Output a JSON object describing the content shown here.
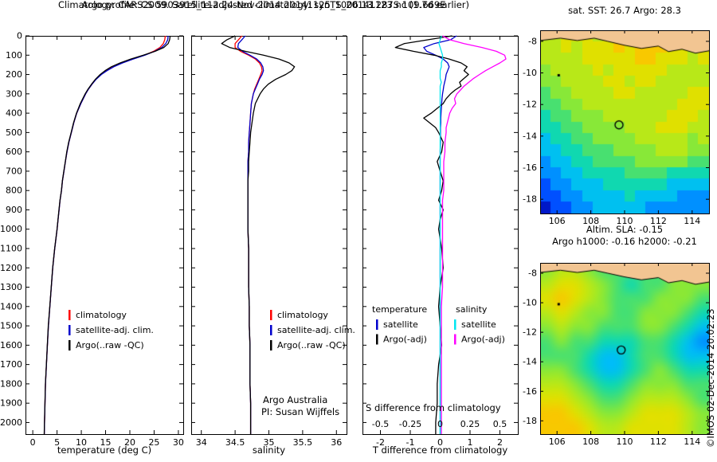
{
  "header": {
    "line1": "Argo profile: CS 5903915_112 24-Nov-2014 20141125_1006 13.287S 109.669E",
    "line2": "Climatology: CARS2009. Satellite-adjusted climatology: synTS_20141123.nc (1.7d earlier)"
  },
  "footer": {
    "copyright": "©IMOS 02-Dec-2014 20:02:23"
  },
  "coastline_polygon": [
    [
      105,
      -7.3
    ],
    [
      105,
      -7.95
    ],
    [
      106.2,
      -7.8
    ],
    [
      107.2,
      -7.95
    ],
    [
      108.2,
      -7.8
    ],
    [
      109.0,
      -8.0
    ],
    [
      110.0,
      -8.25
    ],
    [
      111.0,
      -8.45
    ],
    [
      112.0,
      -8.3
    ],
    [
      112.6,
      -8.65
    ],
    [
      113.4,
      -8.5
    ],
    [
      114.2,
      -8.75
    ],
    [
      115,
      -8.6
    ],
    [
      115,
      -7.3
    ]
  ],
  "chart_data": [
    {
      "id": "temp_profile",
      "type": "line",
      "xlabel": "temperature (deg C)",
      "ylabel": "depth (m)",
      "xlim": [
        -1.5,
        31
      ],
      "ylim": [
        0,
        2060
      ],
      "x_ticks": [
        0,
        5,
        10,
        15,
        20,
        25,
        30
      ],
      "y_ticks": [
        0,
        100,
        200,
        300,
        400,
        500,
        600,
        700,
        800,
        900,
        1000,
        1100,
        1200,
        1300,
        1400,
        1500,
        1600,
        1700,
        1800,
        1900,
        2000
      ],
      "depths": [
        0,
        20,
        40,
        60,
        80,
        100,
        120,
        140,
        160,
        180,
        200,
        225,
        250,
        275,
        300,
        350,
        400,
        450,
        500,
        550,
        600,
        650,
        700,
        750,
        800,
        850,
        900,
        950,
        1000,
        1100,
        1200,
        1300,
        1400,
        1500,
        1600,
        1700,
        1800,
        1900,
        2000,
        2060
      ],
      "series": [
        {
          "name": "climatology",
          "color": "#ff0000",
          "values": [
            27.3,
            27.2,
            26.9,
            26.2,
            24.9,
            23.0,
            20.6,
            18.4,
            16.6,
            15.2,
            14.1,
            13.0,
            12.2,
            11.5,
            10.9,
            9.9,
            9.05,
            8.45,
            7.95,
            7.45,
            7.05,
            6.72,
            6.42,
            6.12,
            5.92,
            5.62,
            5.42,
            5.22,
            5.02,
            4.52,
            4.12,
            3.82,
            3.52,
            3.22,
            3.02,
            2.82,
            2.62,
            2.52,
            2.42,
            2.37
          ]
        },
        {
          "name": "satellite-adj. clim.",
          "color": "#0000cc",
          "values": [
            27.9,
            27.8,
            27.4,
            26.6,
            25.1,
            23.1,
            20.7,
            18.5,
            16.7,
            15.3,
            14.15,
            13.05,
            12.2,
            11.5,
            10.9,
            9.9,
            9.05,
            8.45,
            7.95,
            7.45,
            7.05,
            6.72,
            6.42,
            6.12,
            5.92,
            5.62,
            5.42,
            5.22,
            5.02,
            4.52,
            4.12,
            3.82,
            3.52,
            3.22,
            3.02,
            2.82,
            2.62,
            2.52,
            2.42,
            2.37
          ]
        },
        {
          "name": "Argo(..raw -QC)",
          "color": "#000000",
          "values": [
            28.3,
            28.2,
            27.9,
            27.0,
            25.2,
            22.8,
            20.2,
            18.0,
            16.2,
            14.9,
            13.9,
            12.9,
            12.1,
            11.4,
            10.8,
            9.8,
            9.0,
            8.4,
            7.9,
            7.4,
            7.0,
            6.7,
            6.4,
            6.1,
            5.9,
            5.6,
            5.4,
            5.2,
            5.0,
            4.5,
            4.1,
            3.8,
            3.5,
            3.2,
            3.0,
            2.8,
            2.6,
            2.5,
            2.4,
            2.35
          ]
        }
      ]
    },
    {
      "id": "sal_profile",
      "type": "line",
      "xlabel": "salinity",
      "ylabel": "",
      "xlim": [
        33.85,
        36.15
      ],
      "ylim": [
        0,
        2060
      ],
      "x_ticks": [
        34,
        34.5,
        35,
        35.5,
        36
      ],
      "y_ticks": [
        0,
        100,
        200,
        300,
        400,
        500,
        600,
        700,
        800,
        900,
        1000,
        1100,
        1200,
        1300,
        1400,
        1500,
        1600,
        1700,
        1800,
        1900,
        2000
      ],
      "annotation": {
        "line1": "Argo Australia",
        "line2": "PI: Susan Wijffels"
      },
      "depths": [
        0,
        20,
        40,
        60,
        80,
        100,
        120,
        140,
        160,
        180,
        200,
        225,
        250,
        275,
        300,
        350,
        400,
        450,
        500,
        550,
        600,
        650,
        700,
        750,
        800,
        850,
        900,
        950,
        1000,
        1100,
        1200,
        1300,
        1400,
        1500,
        1600,
        1700,
        1800,
        1900,
        2000,
        2060
      ],
      "series": [
        {
          "name": "climatology",
          "color": "#ff0000",
          "values": [
            34.6,
            34.55,
            34.5,
            34.5,
            34.58,
            34.7,
            34.8,
            34.86,
            34.89,
            34.9,
            34.88,
            34.85,
            34.82,
            34.79,
            34.77,
            34.74,
            34.73,
            34.72,
            34.71,
            34.7,
            34.7,
            34.69,
            34.69,
            34.69,
            34.69,
            34.69,
            34.69,
            34.69,
            34.69,
            34.7,
            34.7,
            34.7,
            34.71,
            34.71,
            34.72,
            34.72,
            34.72,
            34.73,
            34.73,
            34.73
          ]
        },
        {
          "name": "satellite-adj. clim.",
          "color": "#0000cc",
          "values": [
            34.65,
            34.6,
            34.55,
            34.54,
            34.61,
            34.72,
            34.82,
            34.88,
            34.91,
            34.92,
            34.9,
            34.86,
            34.83,
            34.8,
            34.77,
            34.74,
            34.73,
            34.72,
            34.71,
            34.7,
            34.7,
            34.69,
            34.69,
            34.69,
            34.69,
            34.69,
            34.69,
            34.69,
            34.69,
            34.7,
            34.7,
            34.7,
            34.71,
            34.71,
            34.72,
            34.72,
            34.72,
            34.73,
            34.73,
            34.73
          ]
        },
        {
          "name": "Argo(..raw -QC)",
          "color": "#000000",
          "values": [
            34.5,
            34.38,
            34.3,
            34.42,
            34.65,
            34.92,
            35.15,
            35.3,
            35.38,
            35.34,
            35.25,
            35.1,
            34.99,
            34.92,
            34.87,
            34.8,
            34.77,
            34.75,
            34.73,
            34.72,
            34.71,
            34.7,
            34.7,
            34.69,
            34.69,
            34.69,
            34.69,
            34.69,
            34.69,
            34.7,
            34.7,
            34.7,
            34.71,
            34.71,
            34.72,
            34.72,
            34.72,
            34.73,
            34.73,
            34.73
          ]
        }
      ]
    },
    {
      "id": "ts_difference",
      "type": "line",
      "xlabel": "T difference from climatology",
      "ylabel": "",
      "xlim": [
        -2.6,
        2.6
      ],
      "ylim": [
        0,
        2060
      ],
      "x_ticks": [
        -2,
        -1,
        0,
        1,
        2
      ],
      "y_ticks": [
        0,
        100,
        200,
        300,
        400,
        500,
        600,
        700,
        800,
        900,
        1000,
        1100,
        1200,
        1300,
        1400,
        1500,
        1600,
        1700,
        1800,
        1900,
        2000
      ],
      "s_axis": {
        "label": "S difference from climatology",
        "scale": 4,
        "t_positions": [
          -2,
          -1,
          0,
          1,
          2
        ],
        "tick_labels": [
          "-0.5",
          "-0.25",
          "0",
          "0.25",
          "0.5"
        ]
      },
      "legend_cols": [
        {
          "header": "temperature",
          "entries": [
            {
              "label": "satellite",
              "color": "#0000cc"
            },
            {
              "label": "Argo(-adj)",
              "color": "#000000"
            }
          ]
        },
        {
          "header": "salinity",
          "entries": [
            {
              "label": "satellite",
              "color": "#00e6f0"
            },
            {
              "label": "Argo(-adj)",
              "color": "#ff00ff"
            }
          ]
        }
      ],
      "depths": [
        0,
        20,
        40,
        60,
        80,
        100,
        120,
        140,
        160,
        180,
        200,
        220,
        240,
        260,
        280,
        300,
        325,
        350,
        375,
        400,
        425,
        450,
        475,
        500,
        550,
        600,
        650,
        700,
        750,
        800,
        850,
        900,
        950,
        1000,
        1100,
        1200,
        1300,
        1400,
        1500,
        1600,
        1700,
        1800,
        1900,
        2000,
        2060
      ],
      "series": [
        {
          "name": "satellite T",
          "axis": "T",
          "color": "#0000cc",
          "values": [
            0.55,
            0.35,
            -0.2,
            -0.55,
            -0.45,
            -0.15,
            0.1,
            0.25,
            0.3,
            0.25,
            0.2,
            0.18,
            0.15,
            0.12,
            0.1,
            0.08,
            0.06,
            0.05,
            0.04,
            0.03,
            0.02,
            0.02,
            0.01,
            0.01,
            0.01,
            0,
            0,
            0,
            0,
            0,
            0,
            0,
            0,
            0,
            0,
            0,
            0,
            0,
            0,
            0,
            0,
            0,
            0,
            0,
            0
          ]
        },
        {
          "name": "Argo(-adj) T",
          "axis": "T",
          "color": "#000000",
          "values": [
            0.4,
            -0.4,
            -1.2,
            -1.5,
            -0.9,
            -0.2,
            0.3,
            0.7,
            0.9,
            0.8,
            0.95,
            0.8,
            0.65,
            0.7,
            0.5,
            0.35,
            0.2,
            0.1,
            -0.1,
            -0.3,
            -0.55,
            -0.35,
            -0.15,
            -0.05,
            0.1,
            0.05,
            -0.1,
            0,
            0.1,
            0.05,
            -0.05,
            0.1,
            0,
            -0.05,
            0.05,
            0.1,
            0,
            -0.05,
            0,
            0.05,
            -0.05,
            -0.1,
            -0.1,
            -0.15,
            -0.15
          ]
        },
        {
          "name": "Argo(-adj) S",
          "axis": "S",
          "color": "#ff00ff",
          "values": [
            0.02,
            0.08,
            0.2,
            0.35,
            0.47,
            0.54,
            0.55,
            0.5,
            0.44,
            0.38,
            0.33,
            0.28,
            0.24,
            0.2,
            0.17,
            0.14,
            0.12,
            0.13,
            0.1,
            0.08,
            0.07,
            0.06,
            0.05,
            0.05,
            0.04,
            0.04,
            0.03,
            0.03,
            0.03,
            0.03,
            0.02,
            0.02,
            0.02,
            0.02,
            0.02,
            0.02,
            0.02,
            0.01,
            0.01,
            0.01,
            0.01,
            0.01,
            0.01,
            0.01,
            0.01
          ]
        },
        {
          "name": "satellite S",
          "axis": "S",
          "color": "#00e6f0",
          "values": [
            0.01,
            0,
            -0.01,
            0,
            0.01,
            0.02,
            0.02,
            0.01,
            0.01,
            0,
            0,
            0,
            0.01,
            0,
            0,
            0,
            0,
            0,
            0,
            0,
            0,
            0,
            0,
            0,
            0,
            0,
            0,
            0,
            0,
            0,
            0,
            0,
            0,
            0,
            0,
            0,
            0,
            0,
            0,
            0,
            0,
            0,
            0,
            0,
            0
          ]
        }
      ]
    },
    {
      "id": "sst_map",
      "type": "heatmap",
      "title": "sat. SST: 26.7 Argo: 28.3",
      "xlim": [
        105,
        115
      ],
      "ylim": [
        -7.3,
        -18.9
      ],
      "x_ticks": [
        106,
        108,
        110,
        112,
        114
      ],
      "y_ticks": [
        -8,
        -10,
        -12,
        -14,
        -16,
        -18
      ],
      "smooth": false,
      "land_color": "#f2c592",
      "palette": [
        "#0018c8",
        "#0050ff",
        "#0090ff",
        "#00c0f0",
        "#10d8b0",
        "#48e070",
        "#88e838",
        "#b8e818",
        "#e0e000",
        "#f8c800"
      ],
      "grid": [
        "7788878899998888",
        "7787888989998878",
        "7777888889988878",
        "6777787888887777",
        "6677778878877777",
        "5667777887777788",
        "5566777777777888",
        "4556667777778887",
        "4455666677788877",
        "3445566667777767",
        "3344555666677766",
        "2334455556666655",
        "2233444455554444",
        "1223334444443333",
        "1122333343333222",
        "0112233333222222"
      ],
      "markers": {
        "profile_circle": {
          "lon": 109.67,
          "lat": -13.29
        },
        "float_dot": {
          "lon": 106.1,
          "lat": -10.15
        }
      }
    },
    {
      "id": "sla_map",
      "type": "heatmap",
      "title_line1": "Altim. SLA: -0.15",
      "title_line2": "Argo h1000: -0.16 h2000: -0.21",
      "xlim": [
        105,
        115
      ],
      "ylim": [
        -7.3,
        -18.9
      ],
      "x_ticks": [
        106,
        108,
        110,
        112,
        114
      ],
      "y_ticks": [
        -8,
        -10,
        -12,
        -14,
        -16,
        -18
      ],
      "smooth": true,
      "land_color": "#f2c592",
      "palette": [
        "#0018c8",
        "#0050ff",
        "#0090ff",
        "#00c0f0",
        "#10d8b0",
        "#48e070",
        "#88e838",
        "#b8e818",
        "#e0e000",
        "#f8c800"
      ],
      "grid": [
        "677655555666",
        "788765455666",
        "898765556665",
        "787665566654",
        "676655566543",
        "565544455432",
        "555433455433",
        "665433456544",
        "776544566655",
        "887655677765",
        "998766788876",
        "999877888876"
      ],
      "markers": {
        "profile_circle": {
          "lon": 109.8,
          "lat": -13.2
        },
        "float_dot": {
          "lon": 106.1,
          "lat": -10.1
        }
      }
    }
  ]
}
